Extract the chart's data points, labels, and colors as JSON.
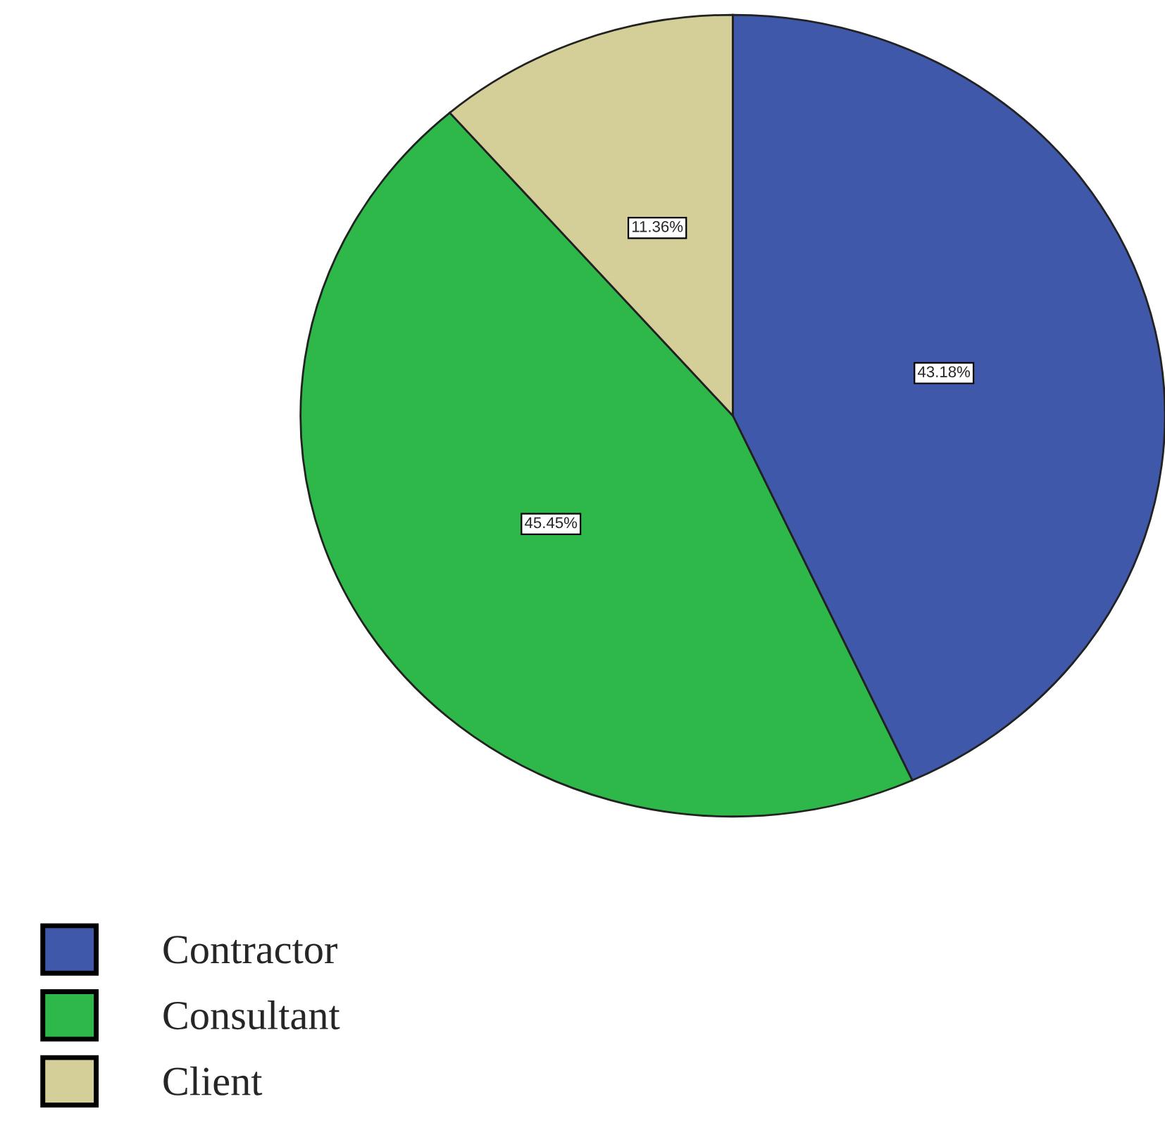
{
  "chart_data": {
    "type": "pie",
    "categories": [
      "Contractor",
      "Consultant",
      "Client"
    ],
    "values": [
      43.18,
      45.45,
      11.36
    ],
    "colors": [
      "#3f58a9",
      "#2eb84a",
      "#d4cf98"
    ],
    "value_labels": [
      "43.18%",
      "45.45%",
      "11.36%"
    ],
    "legend": "bottom left"
  }
}
